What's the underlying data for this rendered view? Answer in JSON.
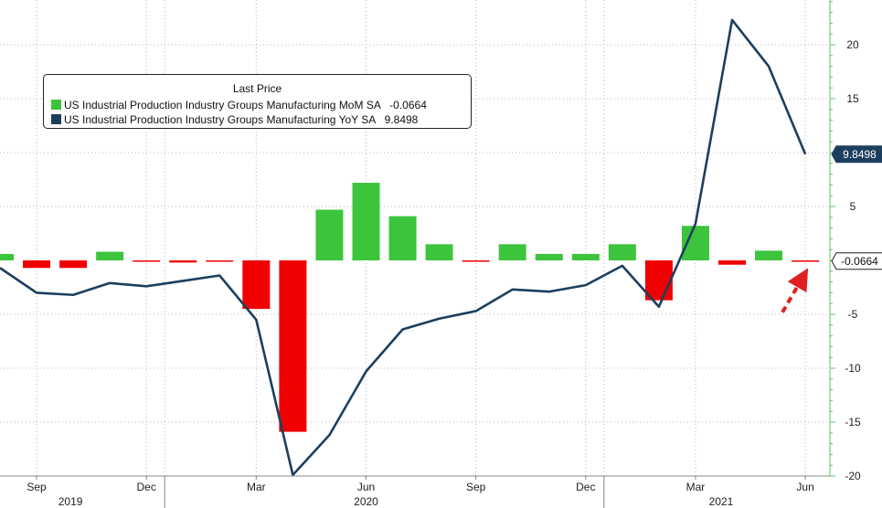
{
  "chart_data": {
    "type": "bar+line",
    "title": "",
    "xlabel": "",
    "ylabel": "",
    "ylim": [
      -20,
      24
    ],
    "y_ticks": [
      -20,
      -15,
      -10,
      -5,
      5,
      10,
      15,
      20
    ],
    "y_tick_labels": [
      "-20",
      "-15",
      "-10",
      "-5",
      "5",
      "10",
      "15",
      "20"
    ],
    "x_tick_labels": [
      "Sep",
      "Dec",
      "Mar",
      "Jun",
      "Sep",
      "Dec",
      "Mar",
      "Jun"
    ],
    "x_tick_months": [
      "2019-09",
      "2019-12",
      "2020-03",
      "2020-06",
      "2020-09",
      "2020-12",
      "2021-03",
      "2021-06"
    ],
    "year_labels": [
      "2019",
      "2020",
      "2021"
    ],
    "year_label_months": [
      "2019-10",
      "2020-06",
      "2021-04"
    ],
    "months": [
      "2019-08",
      "2019-09",
      "2019-10",
      "2019-11",
      "2019-12",
      "2020-01",
      "2020-02",
      "2020-03",
      "2020-04",
      "2020-05",
      "2020-06",
      "2020-07",
      "2020-08",
      "2020-09",
      "2020-10",
      "2020-11",
      "2020-12",
      "2021-01",
      "2021-02",
      "2021-03",
      "2021-04",
      "2021-05",
      "2021-06"
    ],
    "grid": true,
    "legend_position": "top-left",
    "legend": {
      "title": "Last Price",
      "entries": [
        {
          "label": "US Industrial Production Industry Groups Manufacturing MoM SA",
          "value": "-0.0664",
          "color": "#3cc43c"
        },
        {
          "label": "US Industrial Production Industry Groups Manufacturing YoY SA",
          "value": "9.8498",
          "color": "#1c3f5e"
        }
      ]
    },
    "series": [
      {
        "name": "US Industrial Production Industry Groups Manufacturing MoM SA",
        "kind": "bar",
        "positive_color": "#3cc43c",
        "negative_color": "#f00000",
        "values": [
          0.6,
          -0.7,
          -0.7,
          0.8,
          -0.1,
          -0.2,
          -0.1,
          -4.5,
          -15.9,
          4.7,
          7.2,
          4.1,
          1.5,
          -0.1,
          1.5,
          0.6,
          0.6,
          1.5,
          -3.7,
          3.2,
          -0.4,
          0.9,
          -0.0664
        ]
      },
      {
        "name": "US Industrial Production Industry Groups Manufacturing YoY SA",
        "kind": "line",
        "color": "#1c3f5e",
        "values": [
          -0.7,
          -3.0,
          -3.2,
          -2.1,
          -2.4,
          -1.9,
          -1.4,
          -5.5,
          -19.9,
          -16.2,
          -10.3,
          -6.4,
          -5.4,
          -4.7,
          -2.7,
          -2.9,
          -2.3,
          -0.5,
          -4.3,
          3.4,
          22.3,
          18.0,
          9.8498
        ]
      }
    ],
    "value_tags": [
      {
        "series": "US Industrial Production Industry Groups Manufacturing YoY SA",
        "text": "9.8498",
        "value": 9.8498,
        "bg": "#1c3f5e",
        "fg": "#ffffff"
      },
      {
        "series": "US Industrial Production Industry Groups Manufacturing MoM SA",
        "text": "-0.0664",
        "value": -0.0664,
        "bg": "#ffffff",
        "fg": "#111111"
      }
    ],
    "annotations": [
      {
        "type": "dashed-arrow",
        "color": "#e02020",
        "points_to_month": "2021-06",
        "points_to_value": -0.0664
      }
    ]
  }
}
